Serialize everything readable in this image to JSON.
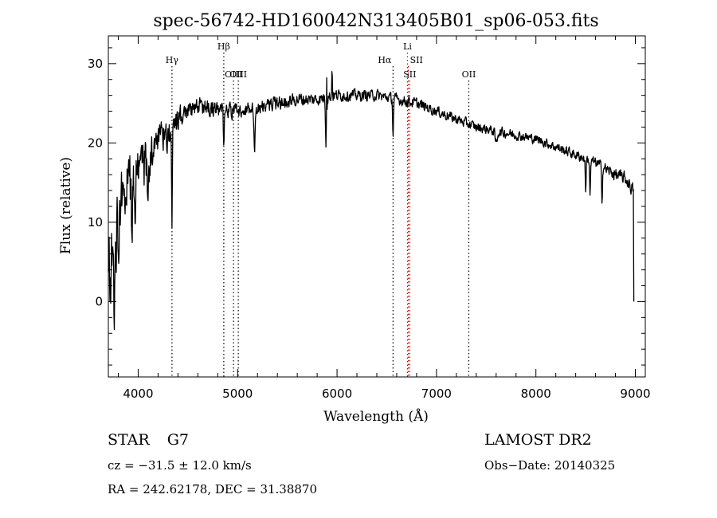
{
  "chart_data": {
    "type": "line",
    "title": "spec-56742-HD160042N313405B01_sp06-053.fits",
    "xlabel": "Wavelength (Å)",
    "ylabel": "Flux (relative)",
    "xlim": [
      3700,
      9100
    ],
    "ylim": [
      -9.5,
      33.5
    ],
    "x_ticks": [
      4000,
      5000,
      6000,
      7000,
      8000,
      9000
    ],
    "y_ticks": [
      0,
      10,
      20,
      30
    ],
    "grid": false,
    "line_color": "#000000",
    "marker_color_red": "#dd0000",
    "continuum": {
      "x": [
        3700,
        3760,
        3800,
        3850,
        3900,
        3950,
        4000,
        4050,
        4100,
        4150,
        4200,
        4250,
        4300,
        4350,
        4400,
        4450,
        4500,
        4600,
        4700,
        4800,
        4900,
        5000,
        5200,
        5400,
        5600,
        5800,
        6000,
        6200,
        6400,
        6600,
        6800,
        7000,
        7200,
        7400,
        7600,
        7800,
        8000,
        8200,
        8400,
        8600,
        8800,
        8900,
        8980
      ],
      "y": [
        2,
        6,
        10,
        14,
        15,
        15.5,
        16,
        17,
        18,
        19,
        19.5,
        20.5,
        21,
        22,
        23,
        23.5,
        24,
        24.5,
        24.5,
        24,
        24,
        24,
        24.5,
        25,
        25.5,
        25.5,
        26,
        26,
        26,
        25.5,
        25,
        24,
        23,
        22,
        21.5,
        21,
        20.5,
        19.5,
        18.5,
        17.5,
        16,
        15.5,
        14
      ]
    },
    "noise_amplitude": {
      "x": [
        3700,
        3800,
        3900,
        4000,
        4100,
        4200,
        4300,
        4400,
        4500,
        5000,
        6000,
        7000,
        8000,
        8600,
        8980
      ],
      "y": [
        7,
        6.5,
        5.5,
        4.8,
        4,
        3.2,
        2.5,
        2,
        1.5,
        1.3,
        1,
        0.9,
        0.8,
        0.9,
        1.2
      ]
    },
    "absorption_features": [
      {
        "x": 3760,
        "depth": 8,
        "width": 10
      },
      {
        "x": 3935,
        "depth": 7,
        "width": 8
      },
      {
        "x": 3970,
        "depth": 5,
        "width": 8
      },
      {
        "x": 4100,
        "depth": 5,
        "width": 10
      },
      {
        "x": 4340,
        "depth": 11,
        "width": 6
      },
      {
        "x": 4861,
        "depth": 4,
        "width": 6
      },
      {
        "x": 5170,
        "depth": 5,
        "width": 10
      },
      {
        "x": 5890,
        "depth": 6,
        "width": 8
      },
      {
        "x": 6563,
        "depth": 4.5,
        "width": 6
      },
      {
        "x": 7600,
        "depth": 1.5,
        "width": 15
      },
      {
        "x": 8500,
        "depth": 4,
        "width": 6
      },
      {
        "x": 8545,
        "depth": 4.5,
        "width": 6
      },
      {
        "x": 8665,
        "depth": 4,
        "width": 6
      }
    ],
    "emission_features": [
      {
        "x": 5895,
        "height": 7,
        "width": 3
      },
      {
        "x": 5950,
        "height": 4,
        "width": 4
      }
    ],
    "end_drop": {
      "x": 8985,
      "y": 0
    },
    "line_markers": [
      {
        "label": "Hγ",
        "x": 4340,
        "label_row": 1,
        "color": "#000000"
      },
      {
        "label": "Hβ",
        "x": 4861,
        "label_row": 0,
        "color": "#000000"
      },
      {
        "label": "OIII",
        "x": 4959,
        "label_row": 2,
        "color": "#000000"
      },
      {
        "label": "OIII",
        "x": 5007,
        "label_row": 2,
        "color": "#000000"
      },
      {
        "label": "Hα",
        "x": 6563,
        "label_row": 1,
        "color": "#000000"
      },
      {
        "label": "Li",
        "x": 6708,
        "label_row": 0,
        "color": "#dd0000"
      },
      {
        "label": "SII",
        "x": 6717,
        "label_row": 1,
        "color": "#dd0000"
      },
      {
        "label": "SII",
        "x": 6731,
        "label_row": 2,
        "color": "#dd0000"
      },
      {
        "label": "OII",
        "x": 7325,
        "label_row": 2,
        "color": "#000000"
      }
    ]
  },
  "info": {
    "object_type": "STAR",
    "subclass": "G7",
    "survey": "LAMOST DR2",
    "redshift_line": "cz = −31.5 ± 12.0 km/s",
    "obs_date": "Obs−Date: 20140325",
    "coords": "RA = 242.62178, DEC =  31.38870"
  }
}
